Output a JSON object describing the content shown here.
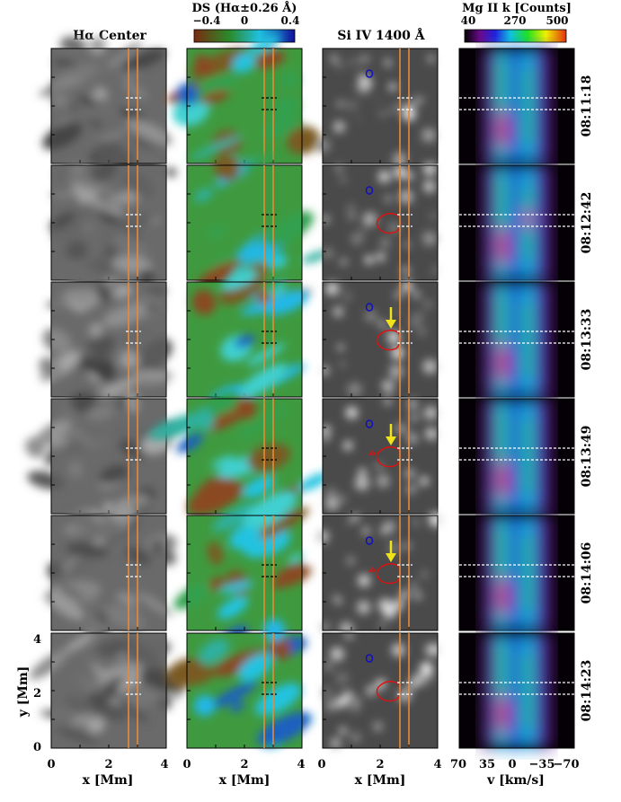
{
  "figure": {
    "column_titles": [
      "Hα Center",
      "DS (Hα±0.26 Å)",
      "Si IV 1400 Å",
      "Mg II k [Counts]"
    ],
    "timestamps": [
      "08:11:18",
      "08:12:42",
      "08:13:33",
      "08:13:49",
      "08:14:06",
      "08:14:23"
    ],
    "colorbar_ds": {
      "ticks": [
        "−0.4",
        "0",
        "0.4"
      ],
      "colors": [
        "#7a2a10",
        "#2a8a2a",
        "#20c0e0",
        "#10109a"
      ]
    },
    "colorbar_mg": {
      "ticks": [
        "40",
        "270",
        "500"
      ],
      "colors": [
        "#000000",
        "#6a0a8a",
        "#2020e0",
        "#10c0e0",
        "#20e020",
        "#f0f000",
        "#e03010"
      ]
    },
    "x_ticks": [
      "0",
      "2",
      "4"
    ],
    "y_ticks": [
      "0",
      "2",
      "4"
    ],
    "v_ticks": [
      "70",
      "35",
      "0",
      "−35",
      "−70"
    ],
    "xlabel": "x [Mm]",
    "vlabel": "v [km/s]",
    "ylabel": "y [Mm]",
    "arrows_in_rows": [
      2,
      3,
      4
    ],
    "slit_color": "#e88a3a",
    "contour_red": "#e01010",
    "contour_blue": "#1010c0",
    "arrow_color": "#f2e21a"
  }
}
